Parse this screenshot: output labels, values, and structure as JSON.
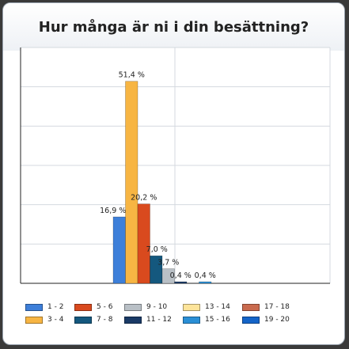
{
  "chart_data": {
    "type": "bar",
    "title": "Hur många är ni i din besättning?",
    "xlabel": "",
    "ylabel": "",
    "ylim": [
      0,
      60
    ],
    "grid": true,
    "legend_position": "bottom",
    "series": [
      {
        "name": "1 - 2",
        "value": 16.9,
        "label": "16,9 %",
        "color": "#3d7fd9"
      },
      {
        "name": "3 - 4",
        "value": 51.4,
        "label": "51,4 %",
        "color": "#f7b543"
      },
      {
        "name": "5 - 6",
        "value": 20.2,
        "label": "20,2 %",
        "color": "#d94a1e"
      },
      {
        "name": "7 - 8",
        "value": 7.0,
        "label": "7,0 %",
        "color": "#14587e"
      },
      {
        "name": "9 - 10",
        "value": 3.7,
        "label": "3,7 %",
        "color": "#b9c0c6"
      },
      {
        "name": "11 - 12",
        "value": 0.4,
        "label": "0,4 %",
        "color": "#1a3a66"
      },
      {
        "name": "13 - 14",
        "value": 0,
        "label": "",
        "color": "#fde49a"
      },
      {
        "name": "15 - 16",
        "value": 0.4,
        "label": "0,4 %",
        "color": "#2a8fd6"
      },
      {
        "name": "17 - 18",
        "value": 0,
        "label": "",
        "color": "#c96a4e"
      },
      {
        "name": "19 - 20",
        "value": 0,
        "label": "",
        "color": "#1464c8"
      }
    ]
  }
}
